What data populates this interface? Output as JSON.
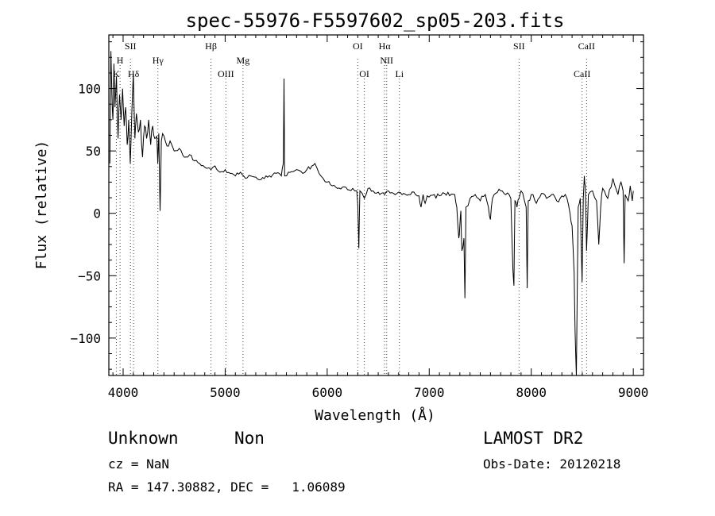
{
  "chart_data": {
    "type": "line",
    "title": "spec-55976-F5597602_sp05-203.fits",
    "xlabel": "Wavelength (Å)",
    "ylabel": "Flux (relative)",
    "xlim": [
      3860,
      9100
    ],
    "ylim": [
      -130,
      143
    ],
    "xticks": [
      4000,
      5000,
      6000,
      7000,
      8000,
      9000
    ],
    "yticks": [
      -100,
      -50,
      0,
      50,
      100
    ],
    "grid": false,
    "series": [
      {
        "values": [
          [
            3870,
            40
          ],
          [
            3880,
            130
          ],
          [
            3890,
            95
          ],
          [
            3900,
            75
          ],
          [
            3910,
            120
          ],
          [
            3920,
            85
          ],
          [
            3935,
            110
          ],
          [
            3950,
            60
          ],
          [
            3965,
            95
          ],
          [
            3980,
            75
          ],
          [
            3995,
            100
          ],
          [
            4010,
            70
          ],
          [
            4025,
            85
          ],
          [
            4040,
            55
          ],
          [
            4055,
            75
          ],
          [
            4070,
            40
          ],
          [
            4085,
            80
          ],
          [
            4100,
            112
          ],
          [
            4115,
            60
          ],
          [
            4130,
            80
          ],
          [
            4150,
            65
          ],
          [
            4170,
            75
          ],
          [
            4190,
            45
          ],
          [
            4210,
            70
          ],
          [
            4230,
            60
          ],
          [
            4250,
            75
          ],
          [
            4270,
            55
          ],
          [
            4290,
            70
          ],
          [
            4310,
            60
          ],
          [
            4330,
            62
          ],
          [
            4340,
            40
          ],
          [
            4350,
            64
          ],
          [
            4362,
            2
          ],
          [
            4375,
            58
          ],
          [
            4400,
            62
          ],
          [
            4430,
            54
          ],
          [
            4460,
            58
          ],
          [
            4500,
            50
          ],
          [
            4550,
            52
          ],
          [
            4600,
            45
          ],
          [
            4650,
            47
          ],
          [
            4700,
            42
          ],
          [
            4750,
            40
          ],
          [
            4800,
            37
          ],
          [
            4861,
            35
          ],
          [
            4900,
            38
          ],
          [
            4950,
            33
          ],
          [
            5000,
            35
          ],
          [
            5050,
            32
          ],
          [
            5100,
            30
          ],
          [
            5150,
            33
          ],
          [
            5200,
            28
          ],
          [
            5250,
            30
          ],
          [
            5300,
            29
          ],
          [
            5350,
            27
          ],
          [
            5400,
            30
          ],
          [
            5450,
            29
          ],
          [
            5500,
            32
          ],
          [
            5550,
            30
          ],
          [
            5570,
            40
          ],
          [
            5577,
            108
          ],
          [
            5583,
            30
          ],
          [
            5620,
            33
          ],
          [
            5700,
            35
          ],
          [
            5760,
            32
          ],
          [
            5800,
            35
          ],
          [
            5850,
            38
          ],
          [
            5880,
            40
          ],
          [
            5920,
            32
          ],
          [
            5960,
            28
          ],
          [
            6000,
            25
          ],
          [
            6050,
            22
          ],
          [
            6100,
            20
          ],
          [
            6150,
            21
          ],
          [
            6200,
            19
          ],
          [
            6250,
            20
          ],
          [
            6290,
            18
          ],
          [
            6300,
            6
          ],
          [
            6310,
            -28
          ],
          [
            6320,
            18
          ],
          [
            6364,
            12
          ],
          [
            6400,
            20
          ],
          [
            6450,
            18
          ],
          [
            6500,
            17
          ],
          [
            6563,
            15
          ],
          [
            6600,
            18
          ],
          [
            6650,
            16
          ],
          [
            6700,
            17
          ],
          [
            6750,
            16
          ],
          [
            6800,
            15
          ],
          [
            6850,
            17
          ],
          [
            6900,
            14
          ],
          [
            6920,
            5
          ],
          [
            6940,
            15
          ],
          [
            6960,
            8
          ],
          [
            6980,
            14
          ],
          [
            7050,
            15
          ],
          [
            7100,
            14
          ],
          [
            7150,
            16
          ],
          [
            7200,
            14
          ],
          [
            7250,
            15
          ],
          [
            7270,
            5
          ],
          [
            7290,
            -20
          ],
          [
            7300,
            -10
          ],
          [
            7310,
            2
          ],
          [
            7320,
            -30
          ],
          [
            7340,
            -20
          ],
          [
            7350,
            -68
          ],
          [
            7360,
            5
          ],
          [
            7400,
            12
          ],
          [
            7450,
            15
          ],
          [
            7500,
            10
          ],
          [
            7550,
            15
          ],
          [
            7580,
            5
          ],
          [
            7600,
            -5
          ],
          [
            7620,
            12
          ],
          [
            7650,
            16
          ],
          [
            7700,
            18
          ],
          [
            7750,
            15
          ],
          [
            7800,
            12
          ],
          [
            7820,
            -45
          ],
          [
            7830,
            -58
          ],
          [
            7840,
            10
          ],
          [
            7860,
            5
          ],
          [
            7880,
            12
          ],
          [
            7900,
            18
          ],
          [
            7950,
            5
          ],
          [
            7960,
            -60
          ],
          [
            7970,
            10
          ],
          [
            8000,
            15
          ],
          [
            8050,
            8
          ],
          [
            8100,
            16
          ],
          [
            8150,
            12
          ],
          [
            8200,
            15
          ],
          [
            8250,
            10
          ],
          [
            8300,
            14
          ],
          [
            8350,
            12
          ],
          [
            8380,
            0
          ],
          [
            8400,
            -10
          ],
          [
            8420,
            -48
          ],
          [
            8430,
            -95
          ],
          [
            8442,
            -130
          ],
          [
            8460,
            5
          ],
          [
            8480,
            12
          ],
          [
            8498,
            -55
          ],
          [
            8510,
            12
          ],
          [
            8520,
            30
          ],
          [
            8530,
            22
          ],
          [
            8542,
            -30
          ],
          [
            8560,
            15
          ],
          [
            8600,
            18
          ],
          [
            8640,
            10
          ],
          [
            8662,
            -25
          ],
          [
            8680,
            5
          ],
          [
            8700,
            20
          ],
          [
            8750,
            12
          ],
          [
            8800,
            28
          ],
          [
            8850,
            15
          ],
          [
            8880,
            25
          ],
          [
            8900,
            18
          ],
          [
            8910,
            -40
          ],
          [
            8920,
            15
          ],
          [
            8950,
            10
          ],
          [
            8970,
            22
          ],
          [
            8990,
            10
          ],
          [
            9000,
            18
          ]
        ]
      }
    ],
    "lines": {
      "top": [
        {
          "label": "SII",
          "x": 4072
        },
        {
          "label": "H",
          "x": 3970
        },
        {
          "label": "Hγ",
          "x": 4341
        },
        {
          "label": "Hβ",
          "x": 4861
        },
        {
          "label": "Mg",
          "x": 5175
        },
        {
          "label": "OI",
          "x": 6300
        },
        {
          "label": "Hα",
          "x": 6563
        },
        {
          "label": "NII",
          "x": 6583
        },
        {
          "label": "SII",
          "x": 7880
        },
        {
          "label": "CaII",
          "x": 8542
        }
      ],
      "bottom": [
        {
          "label": "K",
          "x": 3934
        },
        {
          "label": "Hδ",
          "x": 4102
        },
        {
          "label": "OIII",
          "x": 5007
        },
        {
          "label": "OI",
          "x": 6364
        },
        {
          "label": "Li",
          "x": 6708
        },
        {
          "label": "CaII",
          "x": 8498
        }
      ]
    }
  },
  "info": {
    "class_label": "Unknown",
    "subclass_label": "Non",
    "cz": "cz = NaN",
    "coords": "RA = 147.30882, DEC =   1.06089",
    "survey": "LAMOST DR2",
    "obs_date": "Obs-Date: 20120218"
  }
}
